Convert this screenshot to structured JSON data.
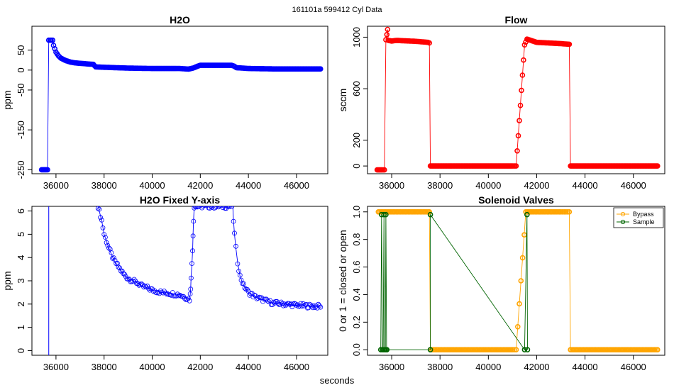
{
  "suptitle": "161101a     599412    Cyl Data",
  "xlabel": "seconds",
  "colors": {
    "h2o": "#0000ff",
    "flow": "#ff0000",
    "bypass": "#ffa500",
    "sample": "#006400"
  },
  "chart_data": [
    {
      "id": "h2o",
      "type": "scatter",
      "title": "H2O",
      "xlabel": "",
      "ylabel": "ppm",
      "xlim": [
        35000,
        47300
      ],
      "ylim": [
        -260,
        110
      ],
      "xticks": [
        36000,
        38000,
        40000,
        42000,
        44000,
        46000
      ],
      "yticks": [
        -250,
        -150,
        -50,
        0,
        50
      ],
      "ytick_labels": [
        "-250",
        "-150",
        "-50",
        "0",
        "50"
      ],
      "series": [
        {
          "color": "#0000ff",
          "points": [
            [
              35400,
              -250
            ],
            [
              35600,
              -250
            ],
            [
              35650,
              -250
            ],
            [
              35700,
              75
            ],
            [
              35760,
              75
            ],
            [
              35800,
              75
            ],
            [
              35860,
              75
            ],
            [
              35900,
              62
            ],
            [
              36000,
              45
            ],
            [
              36100,
              36
            ],
            [
              36200,
              30
            ],
            [
              36400,
              24
            ],
            [
              36600,
              20
            ],
            [
              36800,
              18
            ],
            [
              37000,
              17
            ],
            [
              37200,
              16
            ],
            [
              37400,
              15
            ],
            [
              37550,
              14.5
            ],
            [
              37650,
              8
            ],
            [
              38000,
              7
            ],
            [
              38500,
              6
            ],
            [
              39000,
              5
            ],
            [
              39500,
              4.5
            ],
            [
              40000,
              4
            ],
            [
              40500,
              4
            ],
            [
              41000,
              4
            ],
            [
              41150,
              4
            ],
            [
              41400,
              3
            ],
            [
              41500,
              2.5
            ],
            [
              41700,
              5
            ],
            [
              41900,
              10
            ],
            [
              42000,
              12
            ],
            [
              42500,
              12
            ],
            [
              43000,
              12
            ],
            [
              43300,
              12
            ],
            [
              43400,
              10
            ],
            [
              43500,
              6
            ],
            [
              44000,
              4
            ],
            [
              45000,
              3
            ],
            [
              46000,
              3
            ],
            [
              47000,
              3
            ]
          ]
        }
      ]
    },
    {
      "id": "flow",
      "type": "scatter",
      "title": "Flow",
      "xlabel": "",
      "ylabel": "sccm",
      "xlim": [
        35000,
        47300
      ],
      "ylim": [
        -60,
        1085
      ],
      "xticks": [
        36000,
        38000,
        40000,
        42000,
        44000,
        46000
      ],
      "yticks": [
        0,
        200,
        600,
        1000
      ],
      "ytick_labels": [
        "0",
        "200",
        "600",
        "1000"
      ],
      "series": [
        {
          "color": "#ff0000",
          "points": [
            [
              35400,
              -30
            ],
            [
              35600,
              -30
            ],
            [
              35700,
              -30
            ],
            [
              35760,
              980
            ],
            [
              35800,
              1020
            ],
            [
              35830,
              1060
            ],
            [
              35860,
              975
            ],
            [
              36000,
              970
            ],
            [
              36200,
              975
            ],
            [
              36500,
              972
            ],
            [
              37000,
              968
            ],
            [
              37500,
              960
            ],
            [
              37560,
              955
            ],
            [
              37600,
              0
            ],
            [
              38000,
              0
            ],
            [
              39000,
              0
            ],
            [
              40000,
              0
            ],
            [
              41000,
              0
            ],
            [
              41150,
              0
            ],
            [
              41500,
              940
            ],
            [
              41600,
              985
            ],
            [
              42000,
              960
            ],
            [
              42500,
              955
            ],
            [
              43000,
              950
            ],
            [
              43350,
              945
            ],
            [
              43400,
              0
            ],
            [
              44000,
              0
            ],
            [
              45000,
              0
            ],
            [
              46000,
              0
            ],
            [
              47000,
              0
            ]
          ]
        }
      ]
    },
    {
      "id": "h2o-fixed",
      "type": "scatter",
      "title": "H2O Fixed Y-axis",
      "xlabel": "",
      "ylabel": "ppm",
      "xlim": [
        35000,
        47300
      ],
      "ylim": [
        -0.2,
        6.2
      ],
      "xticks": [
        36000,
        38000,
        40000,
        42000,
        44000,
        46000
      ],
      "yticks": [
        0,
        1,
        2,
        3,
        4,
        5,
        6
      ],
      "ytick_labels": [
        "0",
        "1",
        "2",
        "3",
        "4",
        "5",
        "6"
      ],
      "vline": 35700,
      "series": [
        {
          "color": "#0000ff",
          "points": [
            [
              37750,
              6.2
            ],
            [
              37800,
              6.0
            ],
            [
              37900,
              5.6
            ],
            [
              38000,
              5.0
            ],
            [
              38200,
              4.4
            ],
            [
              38400,
              3.9
            ],
            [
              38600,
              3.6
            ],
            [
              38800,
              3.3
            ],
            [
              39000,
              3.1
            ],
            [
              39200,
              3.0
            ],
            [
              39400,
              2.9
            ],
            [
              39600,
              2.75
            ],
            [
              39800,
              2.7
            ],
            [
              40000,
              2.6
            ],
            [
              40200,
              2.55
            ],
            [
              40400,
              2.5
            ],
            [
              40600,
              2.48
            ],
            [
              40800,
              2.45
            ],
            [
              41000,
              2.42
            ],
            [
              41150,
              2.4
            ],
            [
              41550,
              2.2
            ],
            [
              41580,
              2.4
            ],
            [
              41600,
              2.7
            ],
            [
              41620,
              3.2
            ],
            [
              41650,
              3.7
            ],
            [
              41680,
              4.3
            ],
            [
              41700,
              5.0
            ],
            [
              41720,
              5.6
            ],
            [
              41750,
              6.2
            ],
            [
              43350,
              6.2
            ],
            [
              43380,
              5.6
            ],
            [
              43420,
              5.0
            ],
            [
              43480,
              4.4
            ],
            [
              43550,
              3.8
            ],
            [
              43650,
              3.2
            ],
            [
              43800,
              2.8
            ],
            [
              44000,
              2.5
            ],
            [
              44300,
              2.3
            ],
            [
              44700,
              2.15
            ],
            [
              45000,
              2.05
            ],
            [
              45500,
              2.0
            ],
            [
              46000,
              1.95
            ],
            [
              46500,
              1.92
            ],
            [
              47000,
              1.9
            ]
          ]
        }
      ]
    },
    {
      "id": "solenoid",
      "type": "line",
      "title": "Solenoid Valves",
      "xlabel": "",
      "ylabel": "0 or 1 = closed or open",
      "xlim": [
        35000,
        47300
      ],
      "ylim": [
        -0.04,
        1.04
      ],
      "xticks": [
        36000,
        38000,
        40000,
        42000,
        44000,
        46000
      ],
      "yticks": [
        0,
        0.2,
        0.4,
        0.6,
        0.8,
        1.0
      ],
      "ytick_labels": [
        "0.0",
        "0.2",
        "0.4",
        "0.6",
        "0.8",
        "1.0"
      ],
      "legend": "top-right",
      "series": [
        {
          "name": "Bypass",
          "color": "#ffa500",
          "points": [
            [
              35450,
              1
            ],
            [
              36000,
              1
            ],
            [
              36500,
              1
            ],
            [
              37000,
              1
            ],
            [
              37500,
              1
            ],
            [
              37560,
              1
            ],
            [
              37600,
              0
            ],
            [
              38000,
              0
            ],
            [
              39000,
              0
            ],
            [
              40000,
              0
            ],
            [
              41000,
              0
            ],
            [
              41150,
              0
            ],
            [
              41550,
              1
            ],
            [
              42000,
              1
            ],
            [
              42500,
              1
            ],
            [
              43000,
              1
            ],
            [
              43350,
              1
            ],
            [
              43400,
              0
            ],
            [
              44000,
              0
            ],
            [
              45000,
              0
            ],
            [
              46000,
              0
            ],
            [
              47000,
              0
            ]
          ]
        },
        {
          "name": "Sample",
          "color": "#006400",
          "points": [
            [
              35550,
              0
            ],
            [
              35580,
              0.98
            ],
            [
              35620,
              0
            ],
            [
              35650,
              0
            ],
            [
              35680,
              0.98
            ],
            [
              35700,
              0
            ],
            [
              35740,
              0
            ],
            [
              35760,
              0.98
            ],
            [
              35790,
              0
            ],
            [
              35800,
              0
            ],
            [
              37600,
              0
            ],
            [
              37600,
              0.98
            ],
            [
              41500,
              0
            ],
            [
              41600,
              0.98
            ],
            [
              41620,
              0
            ]
          ]
        }
      ]
    }
  ]
}
